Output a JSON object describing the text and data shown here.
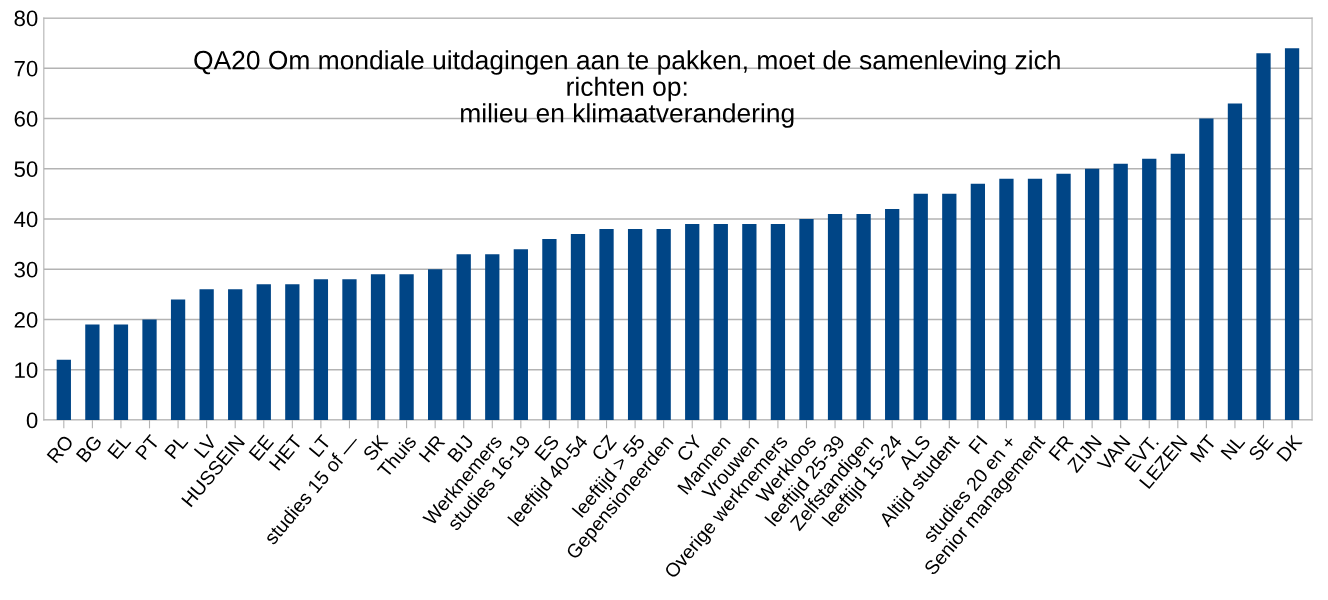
{
  "chart_data": {
    "type": "bar",
    "title": "QA20 Om mondiale uitdagingen aan te pakken, moet de samenleving zich\nrichten op:\nmilieu en klimaatverandering",
    "categories": [
      "RO",
      "BG",
      "EL",
      "PT",
      "PL",
      "LV",
      "HUSSEIN",
      "EE",
      "HET",
      "LT",
      "studies 15 of —",
      "SK",
      "Thuis",
      "HR",
      "BIJ",
      "Werknemers",
      "studies 16-19",
      "ES",
      "leeftijd 40-54",
      "CZ",
      "leeftijd > 55",
      "Gepensioneerden",
      "CY",
      "Mannen",
      "Vrouwen",
      "Overige werknemers",
      "Werkloos",
      "leeftijd 25-39",
      "Zelfstandigen",
      "leeftijd 15-24",
      "ALS",
      "Altijd student",
      "FI",
      "studies 20 en +",
      "Senior management",
      "FR",
      "ZIJN",
      "VAN",
      "EVT.",
      "LEZEN",
      "MT",
      "NL",
      "SE",
      "DK"
    ],
    "values": [
      12,
      19,
      19,
      20,
      24,
      26,
      26,
      27,
      27,
      28,
      28,
      29,
      29,
      30,
      33,
      33,
      34,
      36,
      37,
      38,
      38,
      38,
      39,
      39,
      39,
      39,
      40,
      41,
      41,
      42,
      45,
      45,
      47,
      48,
      48,
      49,
      50,
      51,
      52,
      53,
      60,
      63,
      73,
      74
    ],
    "color": "#004586",
    "ylim": [
      0,
      80
    ],
    "yticks": [
      0,
      10,
      20,
      30,
      40,
      50,
      60,
      70,
      80
    ],
    "grid": "y"
  }
}
